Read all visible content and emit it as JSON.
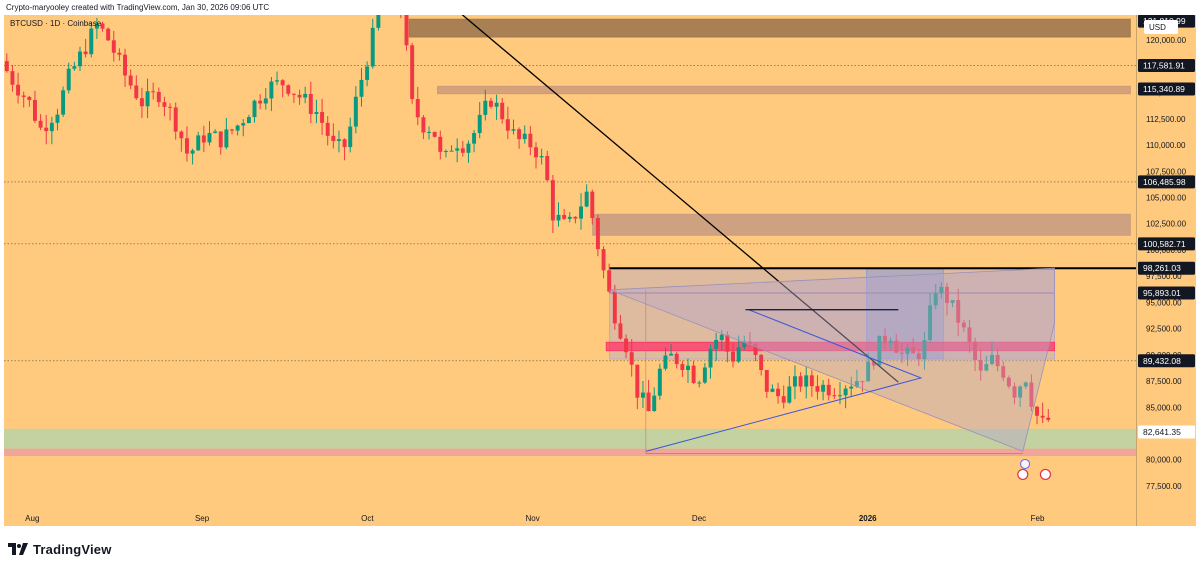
{
  "header": {
    "credit": "Crypto-maryooley created with TradingView.com, Jan 30, 2026 09:06 UTC"
  },
  "footer": {
    "brand": "TradingView",
    "logo_icon": "tradingview-logo-icon"
  },
  "chart_data": {
    "type": "candlestick",
    "title": "BTCUSD · 1D · Coinbase",
    "currency": "USD",
    "x_ticks": [
      "Aug",
      "Sep",
      "Oct",
      "Nov",
      "Dec",
      "2026",
      "Feb"
    ],
    "y_ticks": [
      120000,
      117500,
      115000,
      112500,
      110000,
      107500,
      105000,
      102500,
      100000,
      97500,
      95000,
      92500,
      90000,
      87500,
      85000,
      82500,
      80000,
      77500
    ],
    "y_tick_labels": [
      "120,000.00",
      "117,500.00",
      "115,000.00",
      "112,500.00",
      "110,000.00",
      "107,500.00",
      "105,000.00",
      "102,500.00",
      "100,000.00",
      "97,500.00",
      "95,000.00",
      "92,500.00",
      "90,000.00",
      "87,500.00",
      "85,000.00",
      "82,500.00",
      "80,000.00",
      "77,500.00"
    ],
    "ylim": [
      75400,
      122400
    ],
    "level_labels": [
      {
        "value": 121810.99,
        "text": "121,810.99",
        "style": "dark"
      },
      {
        "value": 117581.91,
        "text": "117,581.91",
        "style": "dark"
      },
      {
        "value": 115340.89,
        "text": "115,340.89",
        "style": "dark"
      },
      {
        "value": 106485.98,
        "text": "106,485.98",
        "style": "dark"
      },
      {
        "value": 100582.71,
        "text": "100,582.71",
        "style": "dark"
      },
      {
        "value": 98261.03,
        "text": "98,261.03",
        "style": "dark"
      },
      {
        "value": 95893.01,
        "text": "95,893.01",
        "style": "dark"
      },
      {
        "value": 89432.08,
        "text": "89,432.08",
        "style": "dark"
      },
      {
        "value": 82641.35,
        "text": "82,641.35",
        "style": "light"
      }
    ],
    "zones": [
      {
        "name": "supply-zone-top",
        "x_from": 0.358,
        "x_to": 0.995,
        "y_from": 120300,
        "y_to": 122000,
        "color": "#a0784f",
        "opacity": 0.9
      },
      {
        "name": "supply-zone-115k",
        "x_from": 0.383,
        "x_to": 0.995,
        "y_from": 114900,
        "y_to": 115600,
        "color": "#c9967a",
        "opacity": 0.8
      },
      {
        "name": "supply-zone-101k",
        "x_from": 0.52,
        "x_to": 0.995,
        "y_from": 101400,
        "y_to": 103400,
        "color": "#c59a80",
        "opacity": 0.85
      },
      {
        "name": "range-box",
        "x_from": 0.535,
        "x_to": 0.928,
        "y_from": 89600,
        "y_to": 98200,
        "color": "#b6a6c9",
        "opacity": 0.45
      },
      {
        "name": "breakout-box",
        "x_from": 0.762,
        "x_to": 0.83,
        "y_from": 89600,
        "y_to": 98200,
        "color": "#8e9dd6",
        "opacity": 0.55
      },
      {
        "name": "red-support-band",
        "x_from": 0.532,
        "x_to": 0.928,
        "y_from": 90400,
        "y_to": 91200,
        "color": "#ff3366",
        "opacity": 0.75
      },
      {
        "name": "green-demand-zone",
        "x_from": 0.0,
        "x_to": 1.0,
        "y_from": 81100,
        "y_to": 82900,
        "color": "#b9d3a6",
        "opacity": 0.85
      },
      {
        "name": "red-demand-band",
        "x_from": 0.0,
        "x_to": 1.0,
        "y_from": 80400,
        "y_to": 81000,
        "color": "#f0a0a0",
        "opacity": 0.85
      }
    ],
    "dotted_levels": [
      117581.91,
      106485.98,
      100582.71,
      89432.08
    ],
    "candles_summary": {
      "start_close": 118000,
      "high": 126000,
      "high_date": "Oct",
      "end_close": 83800,
      "low": 80600,
      "low_date": "Nov"
    },
    "waypoints": [
      [
        0,
        118000
      ],
      [
        0.008,
        116500
      ],
      [
        0.025,
        114000
      ],
      [
        0.035,
        111500
      ],
      [
        0.05,
        113500
      ],
      [
        0.06,
        116500
      ],
      [
        0.07,
        118500
      ],
      [
        0.085,
        121500
      ],
      [
        0.095,
        120000
      ],
      [
        0.11,
        116500
      ],
      [
        0.125,
        114000
      ],
      [
        0.14,
        115000
      ],
      [
        0.155,
        112000
      ],
      [
        0.165,
        109000
      ],
      [
        0.18,
        111000
      ],
      [
        0.195,
        110500
      ],
      [
        0.21,
        112000
      ],
      [
        0.22,
        113500
      ],
      [
        0.235,
        115500
      ],
      [
        0.25,
        116000
      ],
      [
        0.265,
        114500
      ],
      [
        0.28,
        113000
      ],
      [
        0.295,
        109500
      ],
      [
        0.305,
        110000
      ],
      [
        0.315,
        115000
      ],
      [
        0.325,
        119000
      ],
      [
        0.335,
        123000
      ],
      [
        0.345,
        125000
      ],
      [
        0.355,
        122500
      ],
      [
        0.362,
        114000
      ],
      [
        0.372,
        112000
      ],
      [
        0.382,
        111500
      ],
      [
        0.39,
        108000
      ],
      [
        0.4,
        110500
      ],
      [
        0.41,
        110000
      ],
      [
        0.42,
        111500
      ],
      [
        0.432,
        114500
      ],
      [
        0.445,
        112500
      ],
      [
        0.455,
        110500
      ],
      [
        0.47,
        110000
      ],
      [
        0.48,
        108000
      ],
      [
        0.487,
        103500
      ],
      [
        0.5,
        102000
      ],
      [
        0.51,
        104000
      ],
      [
        0.518,
        105500
      ],
      [
        0.525,
        101500
      ],
      [
        0.533,
        97500
      ],
      [
        0.54,
        94500
      ],
      [
        0.552,
        91000
      ],
      [
        0.562,
        86500
      ],
      [
        0.572,
        84500
      ],
      [
        0.582,
        88500
      ],
      [
        0.592,
        89800
      ],
      [
        0.605,
        89200
      ],
      [
        0.615,
        87500
      ],
      [
        0.625,
        90500
      ],
      [
        0.635,
        92000
      ],
      [
        0.645,
        89500
      ],
      [
        0.655,
        91500
      ],
      [
        0.665,
        90000
      ],
      [
        0.675,
        87000
      ],
      [
        0.685,
        86000
      ],
      [
        0.695,
        86500
      ],
      [
        0.705,
        87500
      ],
      [
        0.715,
        87200
      ],
      [
        0.725,
        87000
      ],
      [
        0.735,
        86800
      ],
      [
        0.745,
        87200
      ],
      [
        0.755,
        87600
      ],
      [
        0.765,
        88500
      ],
      [
        0.775,
        90800
      ],
      [
        0.785,
        92200
      ],
      [
        0.795,
        90000
      ],
      [
        0.805,
        89800
      ],
      [
        0.815,
        90600
      ],
      [
        0.825,
        96500
      ],
      [
        0.835,
        95500
      ],
      [
        0.845,
        93500
      ],
      [
        0.855,
        91000
      ],
      [
        0.865,
        88000
      ],
      [
        0.875,
        89500
      ],
      [
        0.885,
        88500
      ],
      [
        0.895,
        86500
      ],
      [
        0.905,
        88000
      ],
      [
        0.913,
        84500
      ],
      [
        0.92,
        83400
      ],
      [
        0.925,
        83800
      ]
    ]
  }
}
